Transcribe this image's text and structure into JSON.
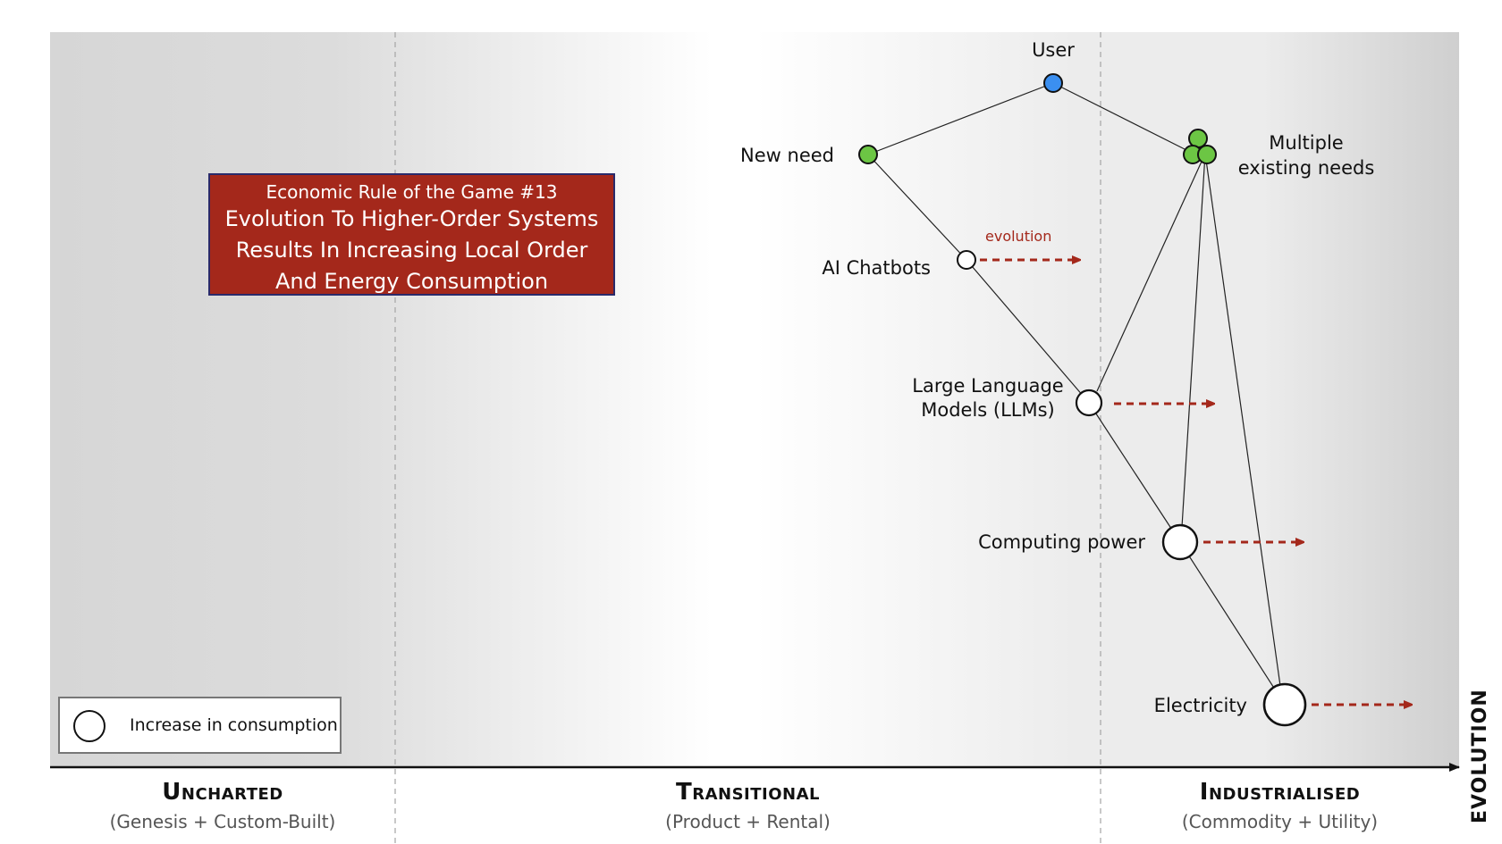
{
  "rule_box": {
    "kicker": "Economic Rule of the Game #13",
    "title_line1": "Evolution To Higher-Order Systems",
    "title_line2": "Results In Increasing Local Order",
    "title_line3": "And Energy Consumption",
    "background_color": "#a4281b"
  },
  "legend": {
    "label": "Increase in consumption"
  },
  "stages": [
    {
      "title": "Uncharted",
      "subtitle": "(Genesis + Custom-Built)"
    },
    {
      "title": "Transitional",
      "subtitle": "(Product + Rental)"
    },
    {
      "title": "Industrialised",
      "subtitle": "(Commodity + Utility)"
    }
  ],
  "axis": {
    "label": "EVOLUTION"
  },
  "nodes": {
    "user": {
      "label": "User",
      "color": "#3b8ff0"
    },
    "new_need": {
      "label": "New need",
      "color": "#6cc644"
    },
    "multiple_needs": {
      "label_line1": "Multiple",
      "label_line2": "existing needs",
      "color": "#6cc644"
    },
    "ai_chatbots": {
      "label": "AI Chatbots"
    },
    "llms": {
      "label_line1": "Large Language",
      "label_line2": "Models (LLMs)"
    },
    "computing_power": {
      "label": "Computing power"
    },
    "electricity": {
      "label": "Electricity"
    }
  },
  "evolution_label": "evolution",
  "colors": {
    "evolution_arrow": "#a4281b",
    "need_green": "#6cc644",
    "user_blue": "#3b8ff0"
  }
}
